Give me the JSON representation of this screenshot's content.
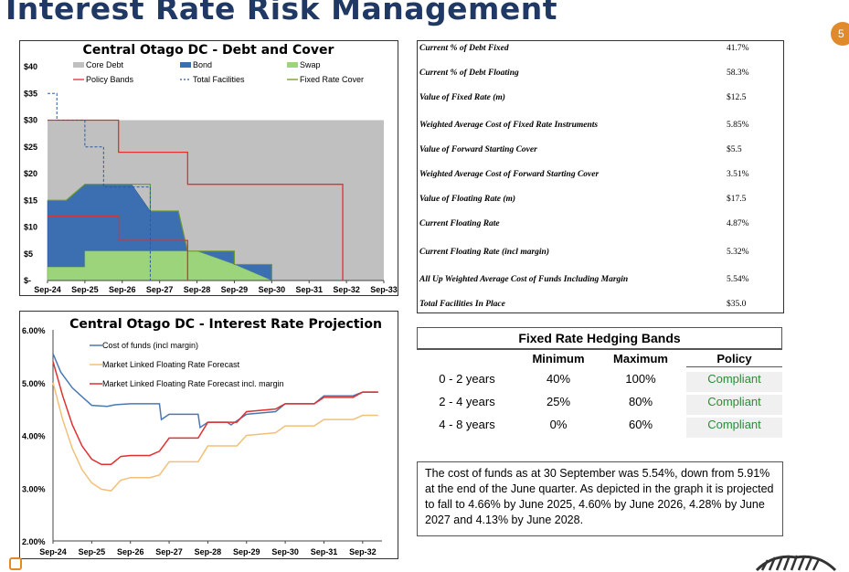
{
  "page": {
    "title": "Interest Rate Risk Management",
    "page_number": "5"
  },
  "colors": {
    "title": "#1f3864",
    "core_debt": "#c0c0c0",
    "bond": "#3b6fb1",
    "swap": "#9bd47b",
    "policy": "#e03030",
    "total_fac": "#2c5aa0",
    "fixed_cover": "#6a9a2a",
    "cof": "#4a79b0",
    "mlf": "#f2c078",
    "mlf_margin": "#e03030",
    "compliant": "#2e8b3a"
  },
  "chart_data": [
    {
      "type": "area",
      "title": "Central Otago DC - Debt and Cover",
      "x": [
        "Sep-24",
        "Sep-25",
        "Sep-26",
        "Sep-27",
        "Sep-28",
        "Sep-29",
        "Sep-30",
        "Sep-31",
        "Sep-32",
        "Sep-33"
      ],
      "xlim": [
        0,
        9
      ],
      "ylim": [
        0,
        40
      ],
      "ytick_labels": [
        "$-",
        "$5",
        "$10",
        "$15",
        "$20",
        "$25",
        "$30",
        "$35",
        "$40"
      ],
      "legend": [
        "Core Debt",
        "Bond",
        "Swap",
        "Policy Bands",
        "Total Facilities",
        "Fixed Rate Cover"
      ],
      "legend_position": "top",
      "series": [
        {
          "name": "Core Debt",
          "kind": "area",
          "points": [
            [
              0,
              30
            ],
            [
              9,
              30
            ]
          ]
        },
        {
          "name": "Bond",
          "kind": "step-area",
          "points": [
            [
              0,
              15
            ],
            [
              0.5,
              15
            ],
            [
              1,
              18
            ],
            [
              2.25,
              18
            ],
            [
              2.75,
              13
            ],
            [
              3.5,
              13
            ],
            [
              3.75,
              5.5
            ],
            [
              5,
              5.5
            ],
            [
              5,
              3
            ],
            [
              6,
              3
            ],
            [
              6,
              0
            ]
          ]
        },
        {
          "name": "Swap",
          "kind": "step-area",
          "points": [
            [
              0,
              0
            ],
            [
              0,
              2.5
            ],
            [
              1,
              2.5
            ],
            [
              1,
              5.5
            ],
            [
              4,
              5.5
            ],
            [
              5,
              3
            ],
            [
              6,
              0
            ]
          ]
        },
        {
          "name": "Policy Bands",
          "kind": "line",
          "points": [
            [
              0,
              30
            ],
            [
              1.9,
              30
            ],
            [
              1.9,
              24
            ],
            [
              3.75,
              24
            ],
            [
              3.75,
              18
            ],
            [
              7.9,
              18
            ],
            [
              7.9,
              0
            ]
          ]
        },
        {
          "name": "Policy Bands (lower)",
          "kind": "line",
          "points": [
            [
              0,
              12
            ],
            [
              1.9,
              12
            ],
            [
              1.9,
              7.5
            ],
            [
              3.75,
              7.5
            ],
            [
              3.75,
              0
            ]
          ]
        },
        {
          "name": "Total Facilities",
          "kind": "line",
          "points": [
            [
              0,
              35
            ],
            [
              0.25,
              35
            ],
            [
              0.25,
              30
            ],
            [
              1,
              30
            ],
            [
              1,
              25
            ],
            [
              1.5,
              25
            ],
            [
              1.5,
              17.5
            ],
            [
              2.75,
              17.5
            ],
            [
              2.75,
              0
            ]
          ]
        },
        {
          "name": "Fixed Rate Cover",
          "kind": "line",
          "points": [
            [
              0,
              15
            ],
            [
              0.5,
              15
            ],
            [
              1,
              18
            ],
            [
              2.75,
              18
            ],
            [
              2.75,
              13
            ],
            [
              3.5,
              13
            ],
            [
              3.75,
              5.5
            ],
            [
              5,
              5.5
            ],
            [
              5,
              3
            ],
            [
              6,
              3
            ],
            [
              6,
              0
            ]
          ]
        }
      ]
    },
    {
      "type": "line",
      "title": "Central Otago DC - Interest Rate Projection",
      "x": [
        "Sep-24",
        "Sep-25",
        "Sep-26",
        "Sep-27",
        "Sep-28",
        "Sep-29",
        "Sep-30",
        "Sep-31",
        "Sep-32"
      ],
      "xlim": [
        0,
        8.5
      ],
      "ylim": [
        2,
        6
      ],
      "ytick_labels": [
        "2.00%",
        "3.00%",
        "4.00%",
        "5.00%",
        "6.00%"
      ],
      "legend_position": "top-left",
      "series": [
        {
          "name": "Cost of funds (incl margin)",
          "points": [
            [
              0,
              5.55
            ],
            [
              0.2,
              5.2
            ],
            [
              0.5,
              4.9
            ],
            [
              0.8,
              4.7
            ],
            [
              1,
              4.57
            ],
            [
              1.4,
              4.55
            ],
            [
              1.6,
              4.58
            ],
            [
              2,
              4.6
            ],
            [
              2.5,
              4.6
            ],
            [
              2.75,
              4.6
            ],
            [
              2.8,
              4.3
            ],
            [
              3,
              4.4
            ],
            [
              3.75,
              4.4
            ],
            [
              3.8,
              4.15
            ],
            [
              4,
              4.25
            ],
            [
              4.5,
              4.25
            ],
            [
              4.6,
              4.2
            ],
            [
              5,
              4.4
            ],
            [
              5.75,
              4.45
            ],
            [
              6,
              4.6
            ],
            [
              6.75,
              4.6
            ],
            [
              7,
              4.75
            ],
            [
              7.75,
              4.75
            ],
            [
              8,
              4.82
            ],
            [
              8.4,
              4.82
            ]
          ]
        },
        {
          "name": "Market Linked Floating Rate Forecast",
          "points": [
            [
              0,
              5.0
            ],
            [
              0.25,
              4.3
            ],
            [
              0.5,
              3.75
            ],
            [
              0.75,
              3.35
            ],
            [
              1,
              3.1
            ],
            [
              1.25,
              2.98
            ],
            [
              1.5,
              2.95
            ],
            [
              1.75,
              3.15
            ],
            [
              2,
              3.2
            ],
            [
              2.5,
              3.2
            ],
            [
              2.75,
              3.25
            ],
            [
              3,
              3.5
            ],
            [
              3.75,
              3.5
            ],
            [
              4,
              3.8
            ],
            [
              4.75,
              3.8
            ],
            [
              5,
              4.0
            ],
            [
              5.75,
              4.05
            ],
            [
              6,
              4.18
            ],
            [
              6.75,
              4.18
            ],
            [
              7,
              4.3
            ],
            [
              7.75,
              4.3
            ],
            [
              8,
              4.38
            ],
            [
              8.4,
              4.38
            ]
          ]
        },
        {
          "name": "Market Linked Floating Rate Forecast incl. margin",
          "points": [
            [
              0,
              5.4
            ],
            [
              0.25,
              4.75
            ],
            [
              0.5,
              4.2
            ],
            [
              0.75,
              3.8
            ],
            [
              1,
              3.55
            ],
            [
              1.25,
              3.45
            ],
            [
              1.5,
              3.45
            ],
            [
              1.75,
              3.6
            ],
            [
              2,
              3.62
            ],
            [
              2.5,
              3.62
            ],
            [
              2.75,
              3.7
            ],
            [
              3,
              3.95
            ],
            [
              3.75,
              3.95
            ],
            [
              4,
              4.25
            ],
            [
              4.75,
              4.25
            ],
            [
              5,
              4.45
            ],
            [
              5.75,
              4.5
            ],
            [
              6,
              4.6
            ],
            [
              6.75,
              4.6
            ],
            [
              7,
              4.72
            ],
            [
              7.75,
              4.72
            ],
            [
              8,
              4.82
            ],
            [
              8.4,
              4.82
            ]
          ]
        }
      ]
    }
  ],
  "stats": [
    {
      "label": "Current % of Debt Fixed",
      "value": "41.7%"
    },
    {
      "label": "Current % of Debt Floating",
      "value": "58.3%"
    },
    {
      "label": "Value of Fixed Rate (m)",
      "value": "$12.5"
    },
    {
      "label": "Weighted Average Cost of Fixed Rate Instruments",
      "value": "5.85%"
    },
    {
      "label": "Value of Forward Starting Cover",
      "value": "$5.5"
    },
    {
      "label": "Weighted Average Cost of Forward Starting Cover",
      "value": "3.51%"
    },
    {
      "label": "Value of Floating Rate (m)",
      "value": "$17.5"
    },
    {
      "label": "Current Floating Rate",
      "value": "4.87%"
    },
    {
      "label": "Current Floating Rate (incl margin)",
      "value": "5.32%"
    },
    {
      "label": "All Up Weighted Average Cost of Funds Including Margin",
      "value": "5.54%"
    },
    {
      "label": "Total Facilities In Place",
      "value": "$35.0"
    }
  ],
  "bands": {
    "title": "Fixed Rate Hedging Bands",
    "headers": [
      "",
      "Minimum",
      "Maximum",
      "Policy"
    ],
    "rows": [
      [
        "0 - 2 years",
        "40%",
        "100%",
        "Compliant"
      ],
      [
        "2 - 4 years",
        "25%",
        "80%",
        "Compliant"
      ],
      [
        "4 - 8 years",
        "0%",
        "60%",
        "Compliant"
      ]
    ]
  },
  "note": "The cost of funds as at 30 September was 5.54%, down from 5.91% at the end of the June quarter.  As depicted in the graph it is projected to fall to 4.66% by June 2025, 4.60% by June 2026, 4.28% by June 2027 and 4.13% by June 2028."
}
